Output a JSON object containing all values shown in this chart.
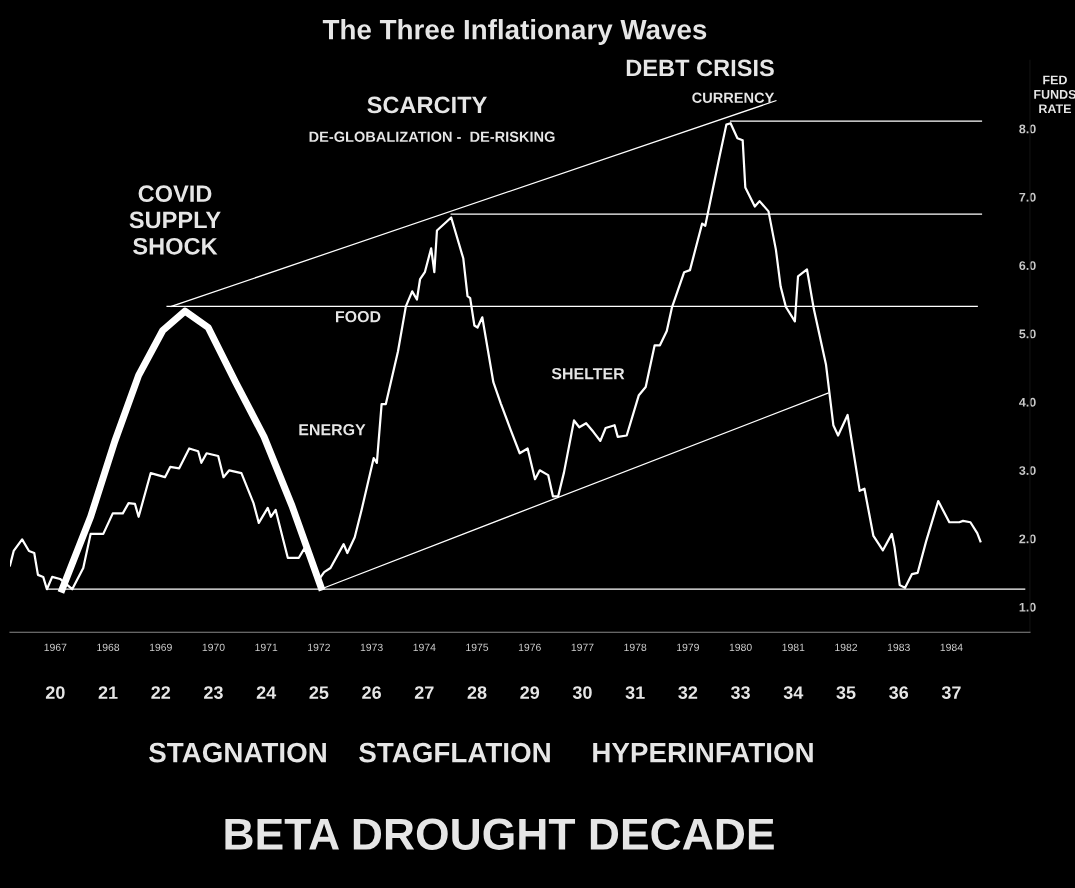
{
  "chart_data": {
    "type": "line",
    "title": "The Three Inflationary Waves",
    "ylabel": "FED FUNDS RATE",
    "xlim": [
      1966.64,
      1985.99
    ],
    "ylim": [
      0.63,
      9.0
    ],
    "xticks": [
      {
        "value": 1967.5,
        "label": "1967"
      },
      {
        "value": 1968.5,
        "label": "1968"
      },
      {
        "value": 1969.5,
        "label": "1969"
      },
      {
        "value": 1970.5,
        "label": "1970"
      },
      {
        "value": 1971.5,
        "label": "1971"
      },
      {
        "value": 1972.5,
        "label": "1972"
      },
      {
        "value": 1973.5,
        "label": "1973"
      },
      {
        "value": 1974.5,
        "label": "1974"
      },
      {
        "value": 1975.5,
        "label": "1975"
      },
      {
        "value": 1976.5,
        "label": "1976"
      },
      {
        "value": 1977.5,
        "label": "1977"
      },
      {
        "value": 1978.5,
        "label": "1978"
      },
      {
        "value": 1979.5,
        "label": "1979"
      },
      {
        "value": 1980.5,
        "label": "1980"
      },
      {
        "value": 1981.5,
        "label": "1981"
      },
      {
        "value": 1982.5,
        "label": "1982"
      },
      {
        "value": 1983.5,
        "label": "1983"
      },
      {
        "value": 1984.5,
        "label": "1984"
      }
    ],
    "x2lim": [
      19.14,
      38.49
    ],
    "x2ticks": [
      20,
      21,
      22,
      23,
      24,
      25,
      26,
      27,
      28,
      29,
      30,
      31,
      32,
      33,
      34,
      35,
      36,
      37
    ],
    "yticks": [
      {
        "value": 1,
        "label": "1.0"
      },
      {
        "value": 2,
        "label": "2.0"
      },
      {
        "value": 3,
        "label": "3.0"
      },
      {
        "value": 4,
        "label": "4.0"
      },
      {
        "value": 5,
        "label": "5.0"
      },
      {
        "value": 6,
        "label": "6.0"
      },
      {
        "value": 7,
        "label": "7.0"
      },
      {
        "value": 8,
        "label": "8.0"
      }
    ],
    "grid": false,
    "legend": false,
    "marker": "none",
    "line_style": "solid",
    "series": [
      {
        "color": "#ffffff",
        "x": [
          1966.64,
          1966.71,
          1966.87,
          1967.0,
          1967.1,
          1967.17,
          1967.27,
          1967.34,
          1967.44,
          1967.59,
          1967.73,
          1967.82,
          1968.03,
          1968.17,
          1968.41,
          1968.59,
          1968.78,
          1968.89,
          1969.01,
          1969.08,
          1969.31,
          1969.58,
          1969.68,
          1969.85,
          1970.04,
          1970.21,
          1970.27,
          1970.37,
          1970.59,
          1970.69,
          1970.8,
          1971.03,
          1971.26,
          1971.36,
          1971.53,
          1971.59,
          1971.68,
          1971.91,
          1972.12,
          1972.22,
          1972.41,
          1972.51,
          1972.6,
          1972.72,
          1972.97,
          1973.04,
          1973.18,
          1973.31,
          1973.54,
          1973.6,
          1973.69,
          1973.77,
          1974.0,
          1974.15,
          1974.27,
          1974.36,
          1974.42,
          1974.51,
          1974.63,
          1974.69,
          1974.74,
          1975.01,
          1975.24,
          1975.32,
          1975.37,
          1975.45,
          1975.51,
          1975.6,
          1975.81,
          1975.95,
          1976.14,
          1976.31,
          1976.46,
          1976.6,
          1976.69,
          1976.85,
          1976.94,
          1977.04,
          1977.15,
          1977.34,
          1977.44,
          1977.57,
          1977.71,
          1977.84,
          1977.94,
          1978.11,
          1978.17,
          1978.34,
          1978.57,
          1978.7,
          1978.87,
          1978.97,
          1979.1,
          1979.2,
          1979.43,
          1979.54,
          1979.77,
          1979.83,
          1980.1,
          1980.23,
          1980.31,
          1980.44,
          1980.54,
          1980.59,
          1980.77,
          1980.86,
          1981.03,
          1981.17,
          1981.26,
          1981.36,
          1981.53,
          1981.59,
          1981.76,
          1981.89,
          1982.12,
          1982.26,
          1982.35,
          1982.53,
          1982.76,
          1982.85,
          1983.02,
          1983.2,
          1983.37,
          1983.42,
          1983.52,
          1983.62,
          1983.75,
          1983.86,
          1984.02,
          1984.25,
          1984.46,
          1984.65,
          1984.72,
          1984.86,
          1984.99,
          1985.05
        ],
        "values": [
          1.61,
          1.82,
          1.99,
          1.82,
          1.79,
          1.47,
          1.44,
          1.26,
          1.44,
          1.41,
          1.32,
          1.26,
          1.57,
          2.07,
          2.07,
          2.37,
          2.37,
          2.52,
          2.51,
          2.32,
          2.96,
          2.9,
          3.05,
          3.03,
          3.32,
          3.28,
          3.11,
          3.25,
          3.21,
          2.9,
          3.0,
          2.96,
          2.52,
          2.23,
          2.45,
          2.32,
          2.42,
          1.72,
          1.72,
          1.85,
          1.61,
          1.41,
          1.51,
          1.57,
          1.92,
          1.79,
          2.02,
          2.42,
          3.18,
          3.11,
          3.97,
          3.97,
          4.74,
          5.4,
          5.62,
          5.5,
          5.8,
          5.9,
          6.25,
          5.9,
          6.51,
          6.7,
          6.1,
          5.55,
          5.52,
          5.12,
          5.09,
          5.24,
          4.29,
          3.98,
          3.59,
          3.25,
          3.32,
          2.87,
          3.0,
          2.93,
          2.62,
          2.62,
          2.97,
          3.73,
          3.63,
          3.69,
          3.56,
          3.43,
          3.62,
          3.66,
          3.49,
          3.51,
          4.1,
          4.22,
          4.83,
          4.83,
          5.04,
          5.39,
          5.9,
          5.93,
          6.61,
          6.58,
          7.59,
          8.06,
          8.08,
          7.86,
          7.83,
          7.14,
          6.86,
          6.94,
          6.79,
          6.23,
          5.69,
          5.39,
          5.18,
          5.84,
          5.94,
          5.36,
          4.55,
          3.66,
          3.51,
          3.81,
          2.7,
          2.73,
          2.04,
          1.83,
          2.07,
          1.88,
          1.32,
          1.28,
          1.48,
          1.5,
          1.96,
          2.55,
          2.24,
          2.24,
          2.26,
          2.24,
          2.08,
          1.96
        ]
      },
      {
        "color": "#ffffff",
        "x": [
          1967.63,
          1968.17,
          1968.63,
          1969.08,
          1969.54,
          1969.96,
          1970.4,
          1970.92,
          1971.46,
          1971.99,
          1972.54
        ],
        "values": [
          1.26,
          2.32,
          3.43,
          4.39,
          5.05,
          5.33,
          5.09,
          4.29,
          3.49,
          2.48,
          1.29
        ]
      },
      {
        "color": "#ffffff",
        "x": [
          1967.36,
          1985.89
        ],
        "values": [
          1.26,
          1.26
        ]
      },
      {
        "color": "#ffffff",
        "x": [
          1969.62,
          1984.99
        ],
        "values": [
          5.4,
          5.4
        ]
      },
      {
        "color": "#ffffff",
        "x": [
          1975.01,
          1985.07
        ],
        "values": [
          6.75,
          6.75
        ]
      },
      {
        "color": "#ffffff",
        "x": [
          1980.31,
          1985.07
        ],
        "values": [
          8.11,
          8.11
        ]
      },
      {
        "color": "#ffffff",
        "x": [
          1969.7,
          1981.17
        ],
        "values": [
          5.4,
          8.41
        ]
      },
      {
        "color": "#ffffff",
        "x": [
          1972.53,
          1982.16
        ],
        "values": [
          1.26,
          4.13
        ]
      }
    ],
    "annotations": [
      "COVID\nSUPPLY\nSHOCK",
      "SCARCITY",
      "DE-GLOBALIZATION -  DE-RISKING",
      "DEBT CRISIS",
      "CURRENCY",
      "FOOD",
      "ENERGY",
      "SHELTER",
      "STAGNATION",
      "STAGFLATION",
      "HYPERINFATION",
      "BETA DROUGHT DECADE"
    ]
  }
}
